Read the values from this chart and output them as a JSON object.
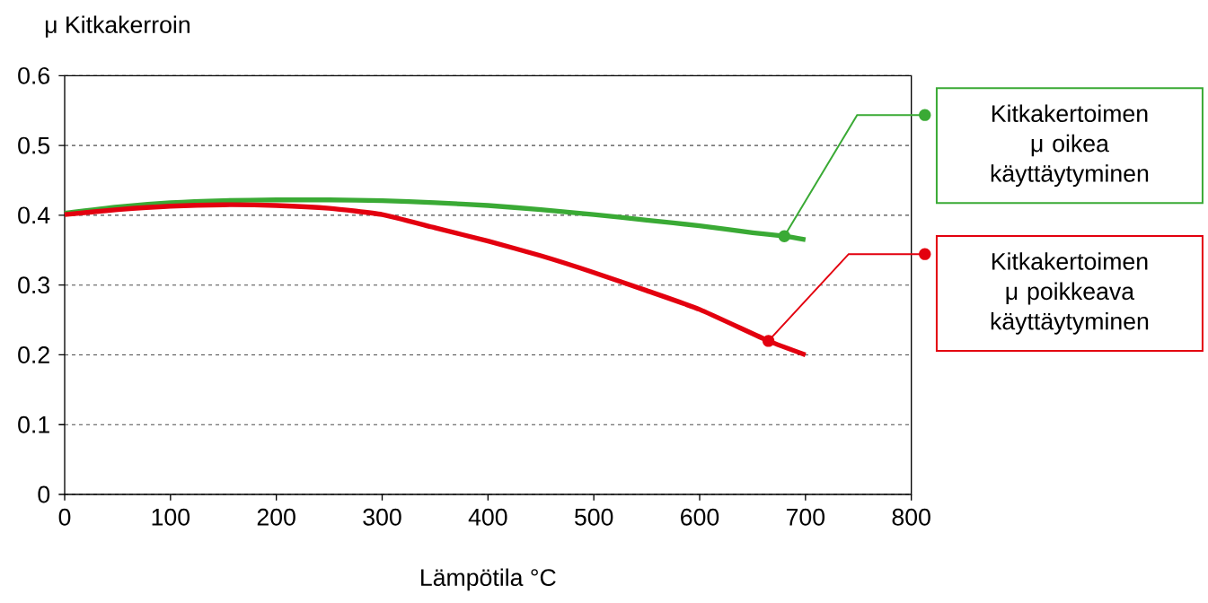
{
  "chart_data": {
    "type": "line",
    "xlabel": "Lämpötila °C",
    "ylabel": "μ Kitkakerroin",
    "xlim": [
      0,
      800
    ],
    "ylim": [
      0,
      0.6
    ],
    "xticks": [
      0,
      100,
      200,
      300,
      400,
      500,
      600,
      700,
      800
    ],
    "yticks": [
      0,
      0.1,
      0.2,
      0.3,
      0.4,
      0.5,
      0.6
    ],
    "grid": "y",
    "legend": "right",
    "series": [
      {
        "name": "Kitkakertoimen μ oikea käyttäytyminen",
        "color": "#3aaa35",
        "x": [
          0,
          50,
          100,
          150,
          200,
          250,
          300,
          350,
          400,
          450,
          500,
          550,
          600,
          650,
          680,
          700
        ],
        "values": [
          0.403,
          0.412,
          0.418,
          0.421,
          0.422,
          0.422,
          0.421,
          0.418,
          0.414,
          0.408,
          0.401,
          0.393,
          0.385,
          0.375,
          0.37,
          0.365
        ]
      },
      {
        "name": "Kitkakertoimen μ poikkeava käyttäytyminen",
        "color": "#e3000f",
        "x": [
          0,
          50,
          100,
          150,
          200,
          250,
          300,
          350,
          400,
          450,
          500,
          550,
          600,
          665,
          700
        ],
        "values": [
          0.401,
          0.408,
          0.413,
          0.415,
          0.414,
          0.41,
          0.401,
          0.382,
          0.363,
          0.342,
          0.318,
          0.292,
          0.265,
          0.22,
          0.2
        ]
      }
    ]
  }
}
